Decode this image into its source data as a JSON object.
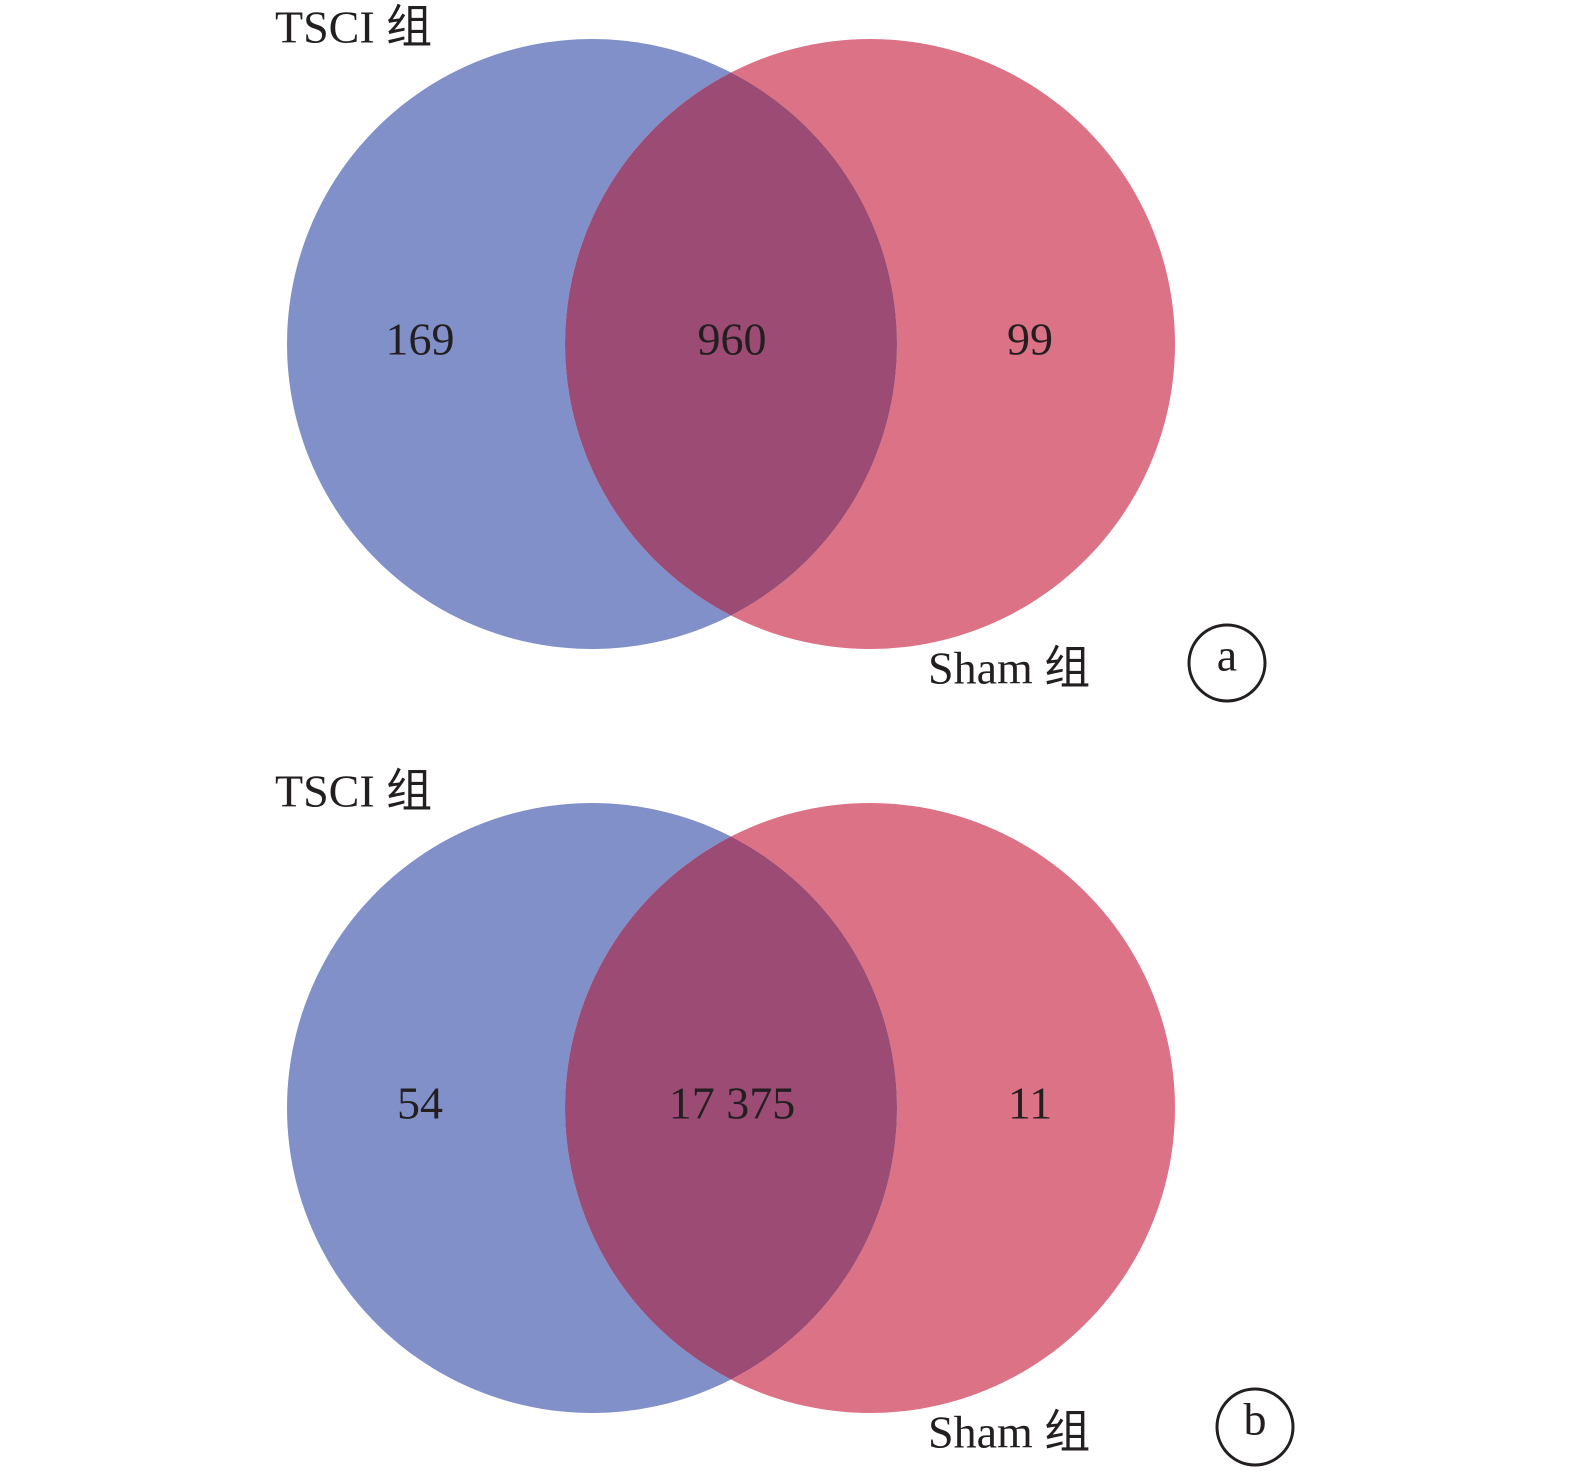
{
  "chart_data": [
    {
      "type": "venn",
      "label": "a",
      "sets": [
        {
          "name": "TSCI 组",
          "color": "#8190c8"
        },
        {
          "name": "Sham 组",
          "color": "#dc7285"
        }
      ],
      "overlap_color": "#9c4b75",
      "values": [
        169,
        960,
        99
      ]
    },
    {
      "type": "venn",
      "label": "b",
      "sets": [
        {
          "name": "TSCI 组",
          "color": "#8190c8"
        },
        {
          "name": "Sham 组",
          "color": "#dc7285"
        }
      ],
      "overlap_color": "#9c4b75",
      "values": [
        54,
        17375,
        11
      ],
      "value_labels": [
        "54",
        "17 375",
        "11"
      ]
    }
  ]
}
